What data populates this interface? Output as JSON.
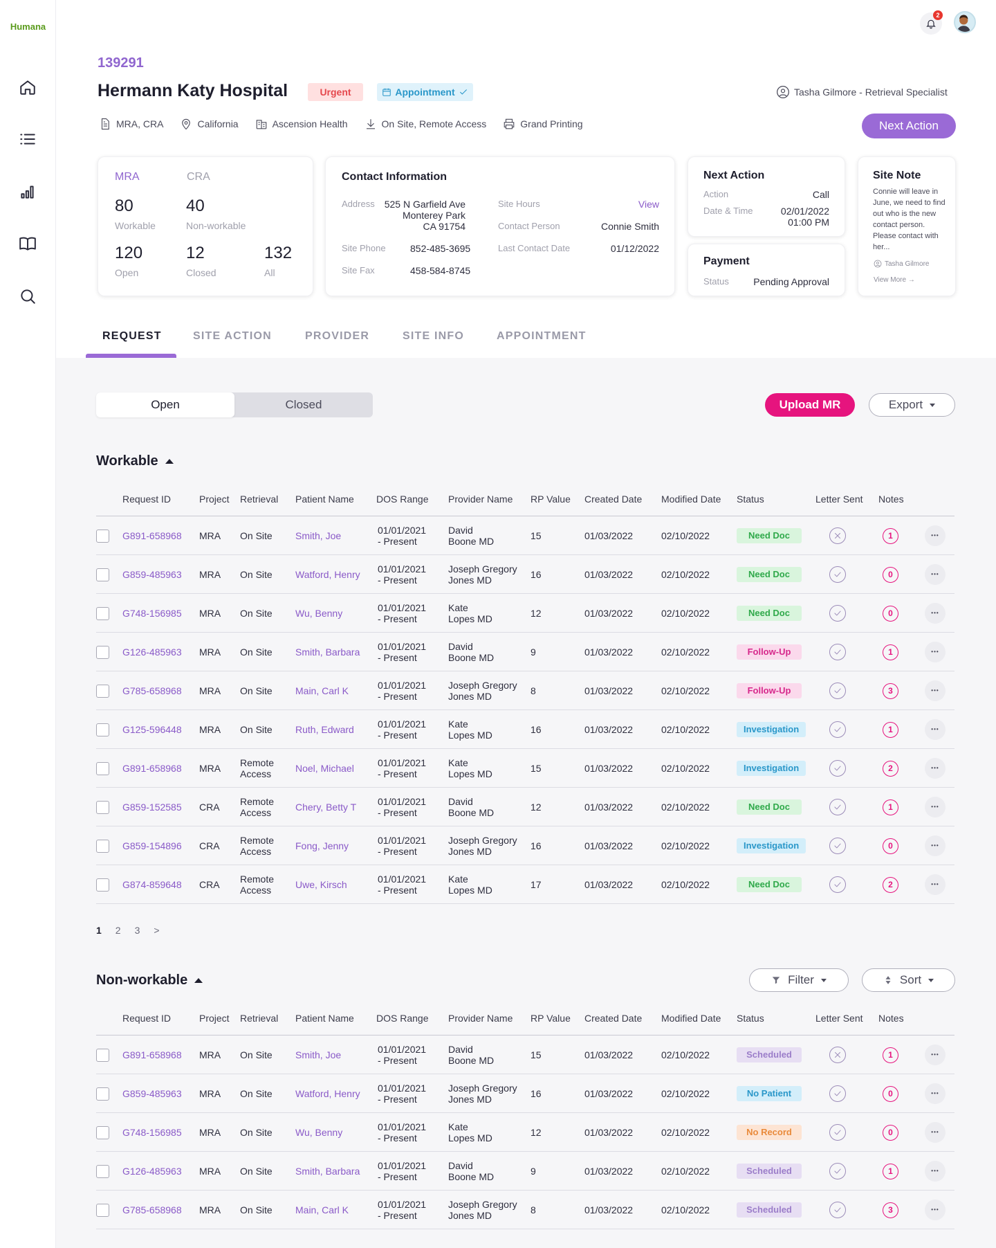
{
  "app": {
    "logo": "Humana",
    "notification_count": "2"
  },
  "header": {
    "request_id": "139291",
    "site_name": "Hermann Katy Hospital",
    "urgent_label": "Urgent",
    "appointment_label": "Appointment",
    "specialist": "Tasha Gilmore - Retrieval Specialist",
    "meta": [
      "MRA, CRA",
      "California",
      "Ascension Health",
      "On Site, Remote Access",
      "Grand Printing"
    ],
    "next_action_button": "Next Action"
  },
  "stats": {
    "mra_label": "MRA",
    "cra_label": "CRA",
    "workable_value": "80",
    "workable_label": "Workable",
    "nonworkable_value": "40",
    "nonworkable_label": "Non-workable",
    "open_value": "120",
    "open_label": "Open",
    "closed_value": "12",
    "closed_label": "Closed",
    "all_value": "132",
    "all_label": "All"
  },
  "contact": {
    "title": "Contact Information",
    "address_label": "Address",
    "address_value": "525 N Garfield Ave\nMonterey Park\nCA 91754",
    "phone_label": "Site Phone",
    "phone_value": "852-485-3695",
    "fax_label": "Site Fax",
    "fax_value": "458-584-8745",
    "hours_label": "Site Hours",
    "hours_value": "View",
    "person_label": "Contact Person",
    "person_value": "Connie Smith",
    "last_label": "Last Contact Date",
    "last_value": "01/12/2022"
  },
  "next_action_card": {
    "title": "Next Action",
    "action_label": "Action",
    "action_value": "Call",
    "datetime_label": "Date & Time",
    "date_value": "02/01/2022",
    "time_value": "01:00 PM"
  },
  "payment": {
    "title": "Payment",
    "status_label": "Status",
    "status_value": "Pending Approval"
  },
  "site_note": {
    "title": "Site Note",
    "text": "Connie will leave in June, we need to find out who is the new contact person. Please contact with her...",
    "author": "Tasha Gilmore",
    "view_more": "View More →"
  },
  "tabs": [
    "REQUEST",
    "SITE ACTION",
    "PROVIDER",
    "SITE INFO",
    "APPOINTMENT"
  ],
  "segment": {
    "open": "Open",
    "closed": "Closed"
  },
  "buttons": {
    "upload": "Upload MR",
    "export": "Export",
    "filter": "Filter",
    "sort": "Sort"
  },
  "columns": [
    "Request ID",
    "Project",
    "Retrieval",
    "Patient Name",
    "DOS Range",
    "Provider Name",
    "RP Value",
    "Created Date",
    "Modified Date",
    "Status",
    "Letter Sent",
    "Notes"
  ],
  "workable": {
    "title": "Workable",
    "rows": [
      {
        "id": "G891-658968",
        "project": "MRA",
        "retrieval": "On Site",
        "patient": "Smith, Joe",
        "dos": "01/01/2021\n- Present",
        "provider": "David\nBoone MD",
        "rp": "15",
        "created": "01/03/2022",
        "modified": "02/10/2022",
        "status": "Need Doc",
        "letter": "x",
        "notes": "1"
      },
      {
        "id": "G859-485963",
        "project": "MRA",
        "retrieval": "On Site",
        "patient": "Watford, Henry",
        "dos": "01/01/2021\n- Present",
        "provider": "Joseph Gregory\nJones MD",
        "rp": "16",
        "created": "01/03/2022",
        "modified": "02/10/2022",
        "status": "Need Doc",
        "letter": "check",
        "notes": "0"
      },
      {
        "id": "G748-156985",
        "project": "MRA",
        "retrieval": "On Site",
        "patient": "Wu, Benny",
        "dos": "01/01/2021\n- Present",
        "provider": "Kate\nLopes MD",
        "rp": "12",
        "created": "01/03/2022",
        "modified": "02/10/2022",
        "status": "Need Doc",
        "letter": "check",
        "notes": "0"
      },
      {
        "id": "G126-485963",
        "project": "MRA",
        "retrieval": "On Site",
        "patient": "Smith, Barbara",
        "dos": "01/01/2021\n- Present",
        "provider": "David\nBoone MD",
        "rp": "9",
        "created": "01/03/2022",
        "modified": "02/10/2022",
        "status": "Follow-Up",
        "letter": "check",
        "notes": "1"
      },
      {
        "id": "G785-658968",
        "project": "MRA",
        "retrieval": "On Site",
        "patient": "Main, Carl K",
        "dos": "01/01/2021\n- Present",
        "provider": "Joseph Gregory\nJones MD",
        "rp": "8",
        "created": "01/03/2022",
        "modified": "02/10/2022",
        "status": "Follow-Up",
        "letter": "check",
        "notes": "3"
      },
      {
        "id": "G125-596448",
        "project": "MRA",
        "retrieval": "On Site",
        "patient": "Ruth, Edward",
        "dos": "01/01/2021\n- Present",
        "provider": "Kate\nLopes MD",
        "rp": "16",
        "created": "01/03/2022",
        "modified": "02/10/2022",
        "status": "Investigation",
        "letter": "check",
        "notes": "1"
      },
      {
        "id": "G891-658968",
        "project": "MRA",
        "retrieval": "Remote\nAccess",
        "patient": "Noel, Michael",
        "dos": "01/01/2021\n- Present",
        "provider": "Kate\nLopes MD",
        "rp": "15",
        "created": "01/03/2022",
        "modified": "02/10/2022",
        "status": "Investigation",
        "letter": "check",
        "notes": "2"
      },
      {
        "id": "G859-152585",
        "project": "CRA",
        "retrieval": "Remote\nAccess",
        "patient": "Chery, Betty T",
        "dos": "01/01/2021\n- Present",
        "provider": "David\nBoone MD",
        "rp": "12",
        "created": "01/03/2022",
        "modified": "02/10/2022",
        "status": "Need Doc",
        "letter": "check",
        "notes": "1"
      },
      {
        "id": "G859-154896",
        "project": "CRA",
        "retrieval": "Remote\nAccess",
        "patient": "Fong, Jenny",
        "dos": "01/01/2021\n- Present",
        "provider": "Joseph Gregory\nJones MD",
        "rp": "16",
        "created": "01/03/2022",
        "modified": "02/10/2022",
        "status": "Investigation",
        "letter": "check",
        "notes": "0"
      },
      {
        "id": "G874-859648",
        "project": "CRA",
        "retrieval": "Remote\nAccess",
        "patient": "Uwe, Kirsch",
        "dos": "01/01/2021\n- Present",
        "provider": "Kate\nLopes MD",
        "rp": "17",
        "created": "01/03/2022",
        "modified": "02/10/2022",
        "status": "Need Doc",
        "letter": "check",
        "notes": "2"
      }
    ]
  },
  "pagination": [
    "1",
    "2",
    "3",
    ">"
  ],
  "nonworkable": {
    "title": "Non-workable",
    "rows": [
      {
        "id": "G891-658968",
        "project": "MRA",
        "retrieval": "On Site",
        "patient": "Smith, Joe",
        "dos": "01/01/2021\n- Present",
        "provider": "David\nBoone MD",
        "rp": "15",
        "created": "01/03/2022",
        "modified": "02/10/2022",
        "status": "Scheduled",
        "letter": "x",
        "notes": "1"
      },
      {
        "id": "G859-485963",
        "project": "MRA",
        "retrieval": "On Site",
        "patient": "Watford, Henry",
        "dos": "01/01/2021\n- Present",
        "provider": "Joseph Gregory\nJones MD",
        "rp": "16",
        "created": "01/03/2022",
        "modified": "02/10/2022",
        "status": "No Patient",
        "letter": "check",
        "notes": "0"
      },
      {
        "id": "G748-156985",
        "project": "MRA",
        "retrieval": "On Site",
        "patient": "Wu, Benny",
        "dos": "01/01/2021\n- Present",
        "provider": "Kate\nLopes MD",
        "rp": "12",
        "created": "01/03/2022",
        "modified": "02/10/2022",
        "status": "No Record",
        "letter": "check",
        "notes": "0"
      },
      {
        "id": "G126-485963",
        "project": "MRA",
        "retrieval": "On Site",
        "patient": "Smith, Barbara",
        "dos": "01/01/2021\n- Present",
        "provider": "David\nBoone MD",
        "rp": "9",
        "created": "01/03/2022",
        "modified": "02/10/2022",
        "status": "Scheduled",
        "letter": "check",
        "notes": "1"
      },
      {
        "id": "G785-658968",
        "project": "MRA",
        "retrieval": "On Site",
        "patient": "Main, Carl K",
        "dos": "01/01/2021\n- Present",
        "provider": "Joseph Gregory\nJones MD",
        "rp": "8",
        "created": "01/03/2022",
        "modified": "02/10/2022",
        "status": "Scheduled",
        "letter": "check",
        "notes": "3"
      }
    ]
  },
  "status_colors": {
    "Need Doc": {
      "bg": "#d9f5dd",
      "fg": "#2fa94a"
    },
    "Follow-Up": {
      "bg": "#fbd9ec",
      "fg": "#d6288b"
    },
    "Investigation": {
      "bg": "#d3eefa",
      "fg": "#2a97c9"
    },
    "Scheduled": {
      "bg": "#e7def3",
      "fg": "#9b7dc9"
    },
    "No Patient": {
      "bg": "#d3eefa",
      "fg": "#2a97c9"
    },
    "No Record": {
      "bg": "#fde4d3",
      "fg": "#e98a3b"
    }
  },
  "icons": [
    "home-icon",
    "list-icon",
    "bar-chart-icon",
    "book-icon",
    "search-icon",
    "bell-icon",
    "user-circle-icon",
    "document-icon",
    "location-pin-icon",
    "building-icon",
    "download-icon",
    "printer-icon",
    "calendar-icon",
    "check-icon",
    "filter-icon",
    "sort-icon"
  ]
}
